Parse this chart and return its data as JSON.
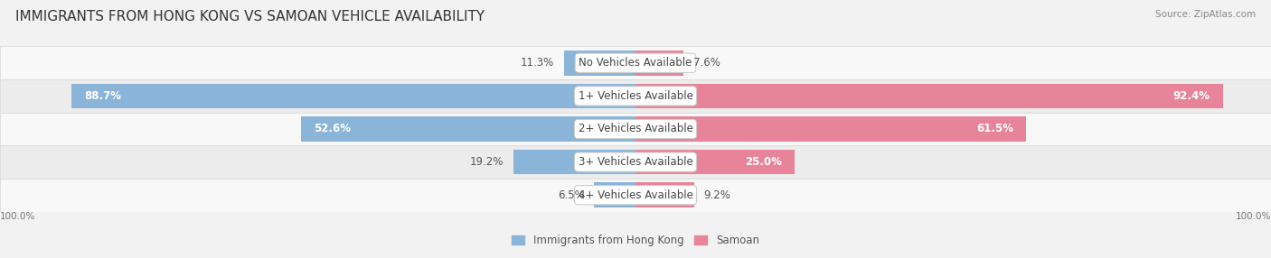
{
  "title": "IMMIGRANTS FROM HONG KONG VS SAMOAN VEHICLE AVAILABILITY",
  "source": "Source: ZipAtlas.com",
  "categories": [
    "No Vehicles Available",
    "1+ Vehicles Available",
    "2+ Vehicles Available",
    "3+ Vehicles Available",
    "4+ Vehicles Available"
  ],
  "hk_values": [
    11.3,
    88.7,
    52.6,
    19.2,
    6.5
  ],
  "samoan_values": [
    7.6,
    92.4,
    61.5,
    25.0,
    9.2
  ],
  "hk_color": "#8ab4d8",
  "samoan_color": "#e8849a",
  "hk_color_dark": "#6a9ec8",
  "samoan_color_dark": "#d8607a",
  "hk_label": "Immigrants from Hong Kong",
  "samoan_label": "Samoan",
  "bg_color": "#f2f2f2",
  "row_bg_light": "#f8f8f8",
  "row_bg_dark": "#ececec",
  "row_separator": "#d8d8d8",
  "axis_label_left": "100.0%",
  "axis_label_right": "100.0%",
  "max_val": 100.0,
  "title_fontsize": 11,
  "value_fontsize": 8.5,
  "label_fontsize": 8.5,
  "bar_height": 0.75,
  "inside_threshold": 25
}
